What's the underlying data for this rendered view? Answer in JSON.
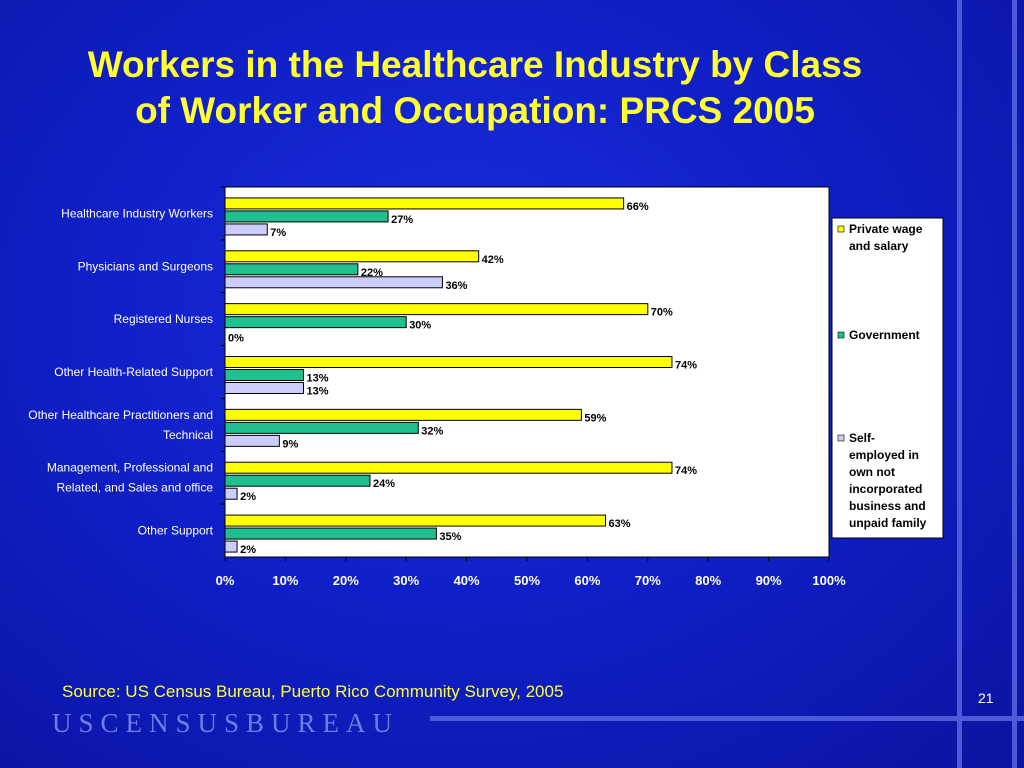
{
  "slide": {
    "title_line1": "Workers in the Healthcare Industry by Class",
    "title_line2": "of Worker and Occupation: PRCS 2005",
    "source": "Source: US Census Bureau, Puerto Rico Community Survey, 2005",
    "page_number": "21",
    "logo_text": "USCENSUSBUREAU"
  },
  "chart_data": {
    "type": "bar",
    "orientation": "horizontal",
    "categories": [
      [
        "Healthcare Industry Workers"
      ],
      [
        "Physicians and Surgeons"
      ],
      [
        "Registered Nurses"
      ],
      [
        "Other Health-Related Support"
      ],
      [
        "Other Healthcare Practitioners and",
        "Technical"
      ],
      [
        "Management, Professional and",
        "Related, and Sales and office"
      ],
      [
        "Other Support"
      ]
    ],
    "series": [
      {
        "name": [
          "Private wage",
          "and salary"
        ],
        "color": "#ffff00",
        "values": [
          66,
          42,
          70,
          74,
          59,
          74,
          63
        ]
      },
      {
        "name": [
          "Government"
        ],
        "color": "#1fbf8f",
        "values": [
          27,
          22,
          30,
          13,
          32,
          24,
          35
        ]
      },
      {
        "name": [
          "Self-",
          "employed in",
          "own not",
          "incorporated",
          "business and",
          "unpaid family"
        ],
        "color": "#ccccff",
        "values": [
          7,
          36,
          0,
          13,
          9,
          2,
          2
        ]
      }
    ],
    "xlim": [
      0,
      100
    ],
    "x_ticks": [
      "0%",
      "10%",
      "20%",
      "30%",
      "40%",
      "50%",
      "60%",
      "70%",
      "80%",
      "90%",
      "100%"
    ],
    "value_suffix": "%",
    "legend_position": "right",
    "grid": false
  }
}
